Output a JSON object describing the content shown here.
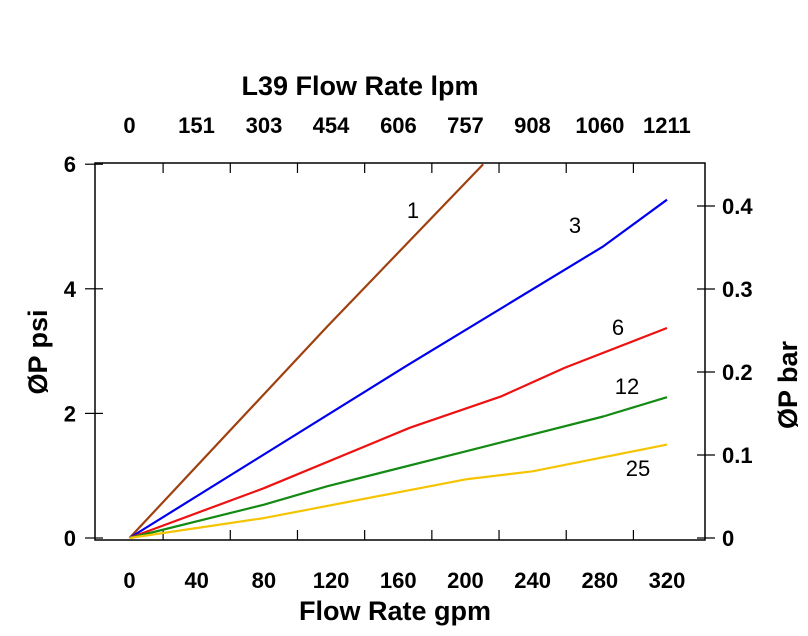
{
  "chart_data": {
    "type": "line",
    "title": "",
    "xlabel": "Flow Rate gpm",
    "ylabel": "ØP psi",
    "x2label": "L39 Flow Rate lpm",
    "y2label": "ØP bar",
    "xlim": [
      0,
      320
    ],
    "ylim": [
      0,
      6
    ],
    "y2lim": [
      0,
      0.4
    ],
    "x_ticks": [
      "0",
      "40",
      "80",
      "120",
      "160",
      "200",
      "240",
      "280",
      "320"
    ],
    "x2_ticks": [
      "0",
      "151",
      "303",
      "454",
      "606",
      "757",
      "908",
      "1060",
      "1211"
    ],
    "y_ticks": [
      "0",
      "2",
      "4",
      "6"
    ],
    "y2_ticks": [
      "0",
      "0.1",
      "0.2",
      "0.3",
      "0.4"
    ],
    "grid": false,
    "legend": "inline labels",
    "series": [
      {
        "name": "1",
        "color": "#a0400f",
        "x": [
          0,
          117.6,
          210.6
        ],
        "y": [
          0,
          3.39,
          6.0
        ]
      },
      {
        "name": "3",
        "color": "#0000ee",
        "x": [
          0,
          164.7,
          282,
          320
        ],
        "y": [
          0,
          2.76,
          4.68,
          5.43
        ]
      },
      {
        "name": "6",
        "color": "#ee1111",
        "x": [
          0,
          80,
          167,
          221,
          259,
          320
        ],
        "y": [
          0,
          0.8,
          1.77,
          2.27,
          2.73,
          3.37
        ]
      },
      {
        "name": "12",
        "color": "#138a13",
        "x": [
          0,
          80,
          117.6,
          200,
          282,
          320
        ],
        "y": [
          0,
          0.535,
          0.83,
          1.39,
          1.95,
          2.26
        ]
      },
      {
        "name": "25",
        "color": "#f5c400",
        "x": [
          0,
          80,
          200,
          240,
          320
        ],
        "y": [
          0,
          0.32,
          0.94,
          1.07,
          1.5
        ]
      }
    ]
  }
}
